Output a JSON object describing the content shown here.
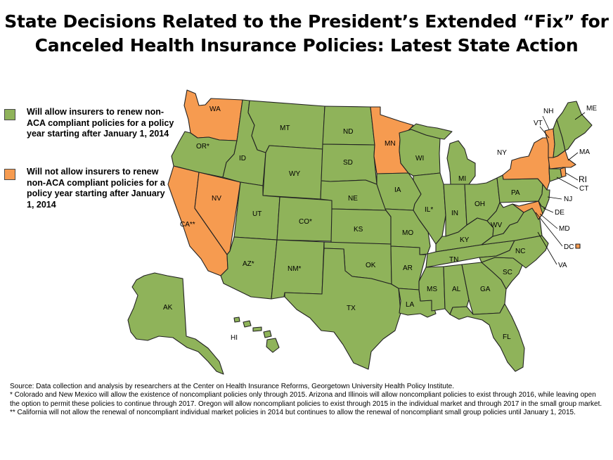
{
  "title": {
    "line1": "State Decisions Related to the President’s Extended “Fix” for",
    "line2": "Canceled Health Insurance Policies: Latest State Action"
  },
  "colors": {
    "allow": "#8fb35a",
    "not_allow": "#f69b50"
  },
  "legend": {
    "allow": "Will allow insurers to renew non-ACA compliant policies for a policy year starting after January 1, 2014",
    "not_allow": "Will not allow insurers to renew non-ACA compliant policies for a policy year starting after January 1, 2014"
  },
  "states": {
    "WA": {
      "label": "WA",
      "status": "not_allow"
    },
    "OR": {
      "label": "OR*",
      "status": "allow"
    },
    "CA": {
      "label": "CA**",
      "status": "not_allow"
    },
    "NV": {
      "label": "NV",
      "status": "not_allow"
    },
    "ID": {
      "label": "ID",
      "status": "allow"
    },
    "MT": {
      "label": "MT",
      "status": "allow"
    },
    "WY": {
      "label": "WY",
      "status": "allow"
    },
    "UT": {
      "label": "UT",
      "status": "allow"
    },
    "AZ": {
      "label": "AZ*",
      "status": "allow"
    },
    "CO": {
      "label": "CO*",
      "status": "allow"
    },
    "NM": {
      "label": "NM*",
      "status": "allow"
    },
    "ND": {
      "label": "ND",
      "status": "allow"
    },
    "SD": {
      "label": "SD",
      "status": "allow"
    },
    "NE": {
      "label": "NE",
      "status": "allow"
    },
    "KS": {
      "label": "KS",
      "status": "allow"
    },
    "OK": {
      "label": "OK",
      "status": "allow"
    },
    "TX": {
      "label": "TX",
      "status": "allow"
    },
    "MN": {
      "label": "MN",
      "status": "not_allow"
    },
    "IA": {
      "label": "IA",
      "status": "allow"
    },
    "MO": {
      "label": "MO",
      "status": "allow"
    },
    "AR": {
      "label": "AR",
      "status": "allow"
    },
    "LA": {
      "label": "LA",
      "status": "allow"
    },
    "WI": {
      "label": "WI",
      "status": "allow"
    },
    "IL": {
      "label": "IL*",
      "status": "allow"
    },
    "MI": {
      "label": "MI",
      "status": "allow"
    },
    "IN": {
      "label": "IN",
      "status": "allow"
    },
    "OH": {
      "label": "OH",
      "status": "allow"
    },
    "KY": {
      "label": "KY",
      "status": "allow"
    },
    "TN": {
      "label": "TN",
      "status": "allow"
    },
    "MS": {
      "label": "MS",
      "status": "allow"
    },
    "AL": {
      "label": "AL",
      "status": "allow"
    },
    "GA": {
      "label": "GA",
      "status": "allow"
    },
    "FL": {
      "label": "FL",
      "status": "allow"
    },
    "SC": {
      "label": "SC",
      "status": "allow"
    },
    "NC": {
      "label": "NC",
      "status": "allow"
    },
    "VA": {
      "label": "VA",
      "status": "allow"
    },
    "WV": {
      "label": "WV",
      "status": "allow"
    },
    "PA": {
      "label": "PA",
      "status": "allow"
    },
    "NY": {
      "label": "NY",
      "status": "not_allow"
    },
    "NJ": {
      "label": "NJ",
      "status": "allow"
    },
    "DE": {
      "label": "DE",
      "status": "allow"
    },
    "MD": {
      "label": "MD",
      "status": "not_allow"
    },
    "DC": {
      "label": "DC",
      "status": "not_allow"
    },
    "VT": {
      "label": "VT",
      "status": "not_allow"
    },
    "NH": {
      "label": "NH",
      "status": "allow"
    },
    "ME": {
      "label": "ME",
      "status": "allow"
    },
    "MA": {
      "label": "MA",
      "status": "not_allow"
    },
    "RI": {
      "label": "RI",
      "status": "not_allow"
    },
    "CT": {
      "label": "CT",
      "status": "allow"
    },
    "AK": {
      "label": "AK",
      "status": "allow"
    },
    "HI": {
      "label": "HI",
      "status": "allow"
    }
  },
  "footnotes": {
    "source": "Source: Data collection and analysis by researchers at the Center on Health Insurance Reforms, Georgetown University Health Policy Institute.",
    "note1": "*  Colorado and New Mexico will allow the existence of noncompliant policies only through 2015.  Arizona and Illinois will allow noncompliant policies to exist through 2016, while leaving open the option to permit these policies to continue through 2017. Oregon will allow noncompliant policies to exist through 2015 in the individual market and through 2017 in the small group market.",
    "note2": "**  California will not allow the renewal of noncompliant individual market policies in 2014 but continues to allow the renewal of noncompliant small group policies until January 1, 2015."
  }
}
